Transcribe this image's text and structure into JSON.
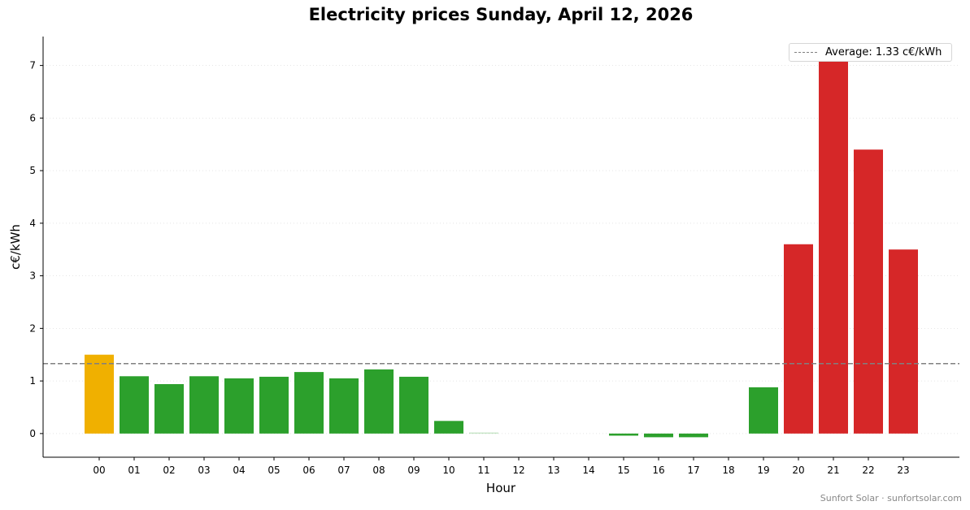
{
  "chart_data": {
    "type": "bar",
    "title": "Electricity prices Sunday, April 12, 2026",
    "xlabel": "Hour",
    "ylabel": "c€/kWh",
    "categories": [
      "00",
      "01",
      "02",
      "03",
      "04",
      "05",
      "06",
      "07",
      "08",
      "09",
      "10",
      "11",
      "12",
      "13",
      "14",
      "15",
      "16",
      "17",
      "18",
      "19",
      "20",
      "21",
      "22",
      "23"
    ],
    "values": [
      1.5,
      1.09,
      0.94,
      1.09,
      1.05,
      1.08,
      1.17,
      1.05,
      1.22,
      1.08,
      0.24,
      0.02,
      0.0,
      0.0,
      0.0,
      -0.04,
      -0.07,
      -0.07,
      0.0,
      0.88,
      3.6,
      7.1,
      5.4,
      3.5
    ],
    "bar_colors": [
      "#f0b000",
      "#2ca02c",
      "#2ca02c",
      "#2ca02c",
      "#2ca02c",
      "#2ca02c",
      "#2ca02c",
      "#2ca02c",
      "#2ca02c",
      "#2ca02c",
      "#2ca02c",
      "#2ca02c",
      "#2ca02c",
      "#2ca02c",
      "#2ca02c",
      "#2ca02c",
      "#2ca02c",
      "#2ca02c",
      "#2ca02c",
      "#2ca02c",
      "#d62728",
      "#d62728",
      "#d62728",
      "#d62728"
    ],
    "average": 1.33,
    "legend": {
      "label": "Average: 1.33 c€/kWh",
      "placement": "top-right"
    },
    "ylim": [
      -0.45,
      7.55
    ],
    "yticks": [
      0,
      1,
      2,
      3,
      4,
      5,
      6,
      7
    ],
    "grid": "y-dotted",
    "colors": {
      "low": "#2ca02c",
      "mid": "#f0b000",
      "high": "#d62728",
      "average_line": "#808080"
    }
  },
  "footer": "Sunfort Solar · sunfortsolar.com"
}
